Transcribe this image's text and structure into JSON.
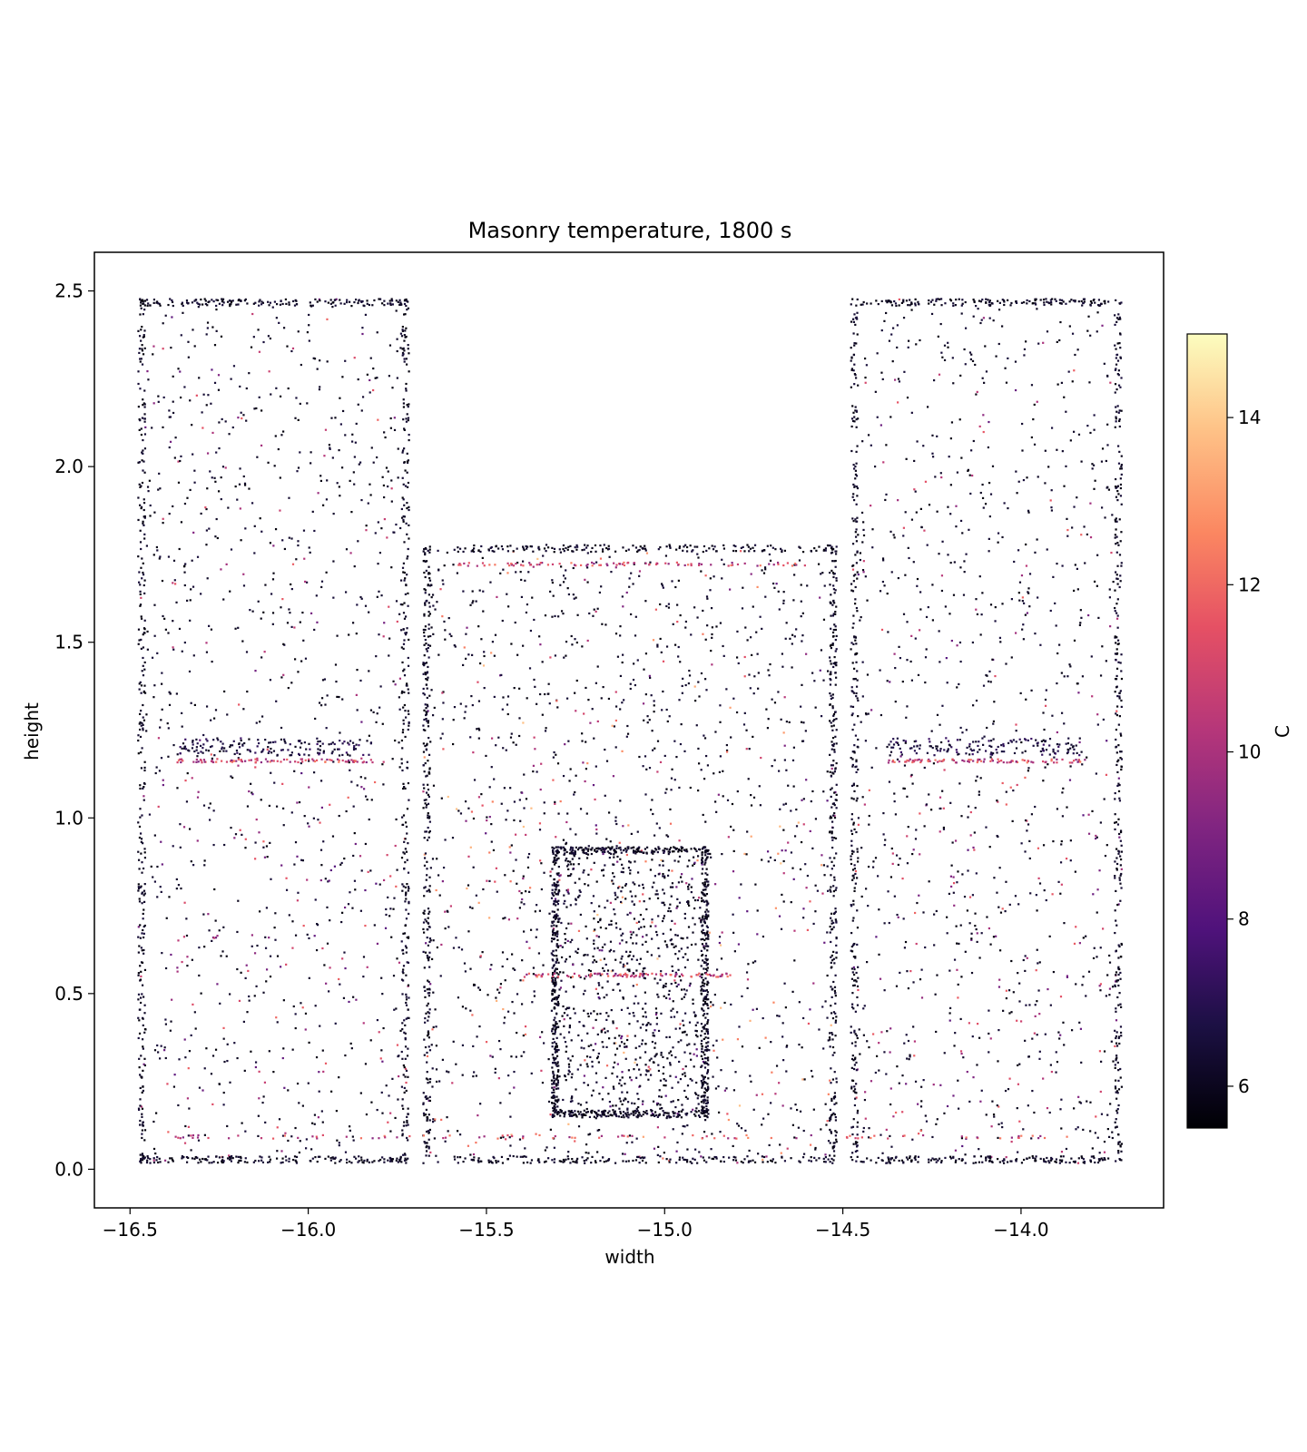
{
  "chart_data": {
    "type": "scatter",
    "title": "Masonry temperature, 1800 s",
    "xlabel": "width",
    "ylabel": "height",
    "xlim": [
      -16.6,
      -13.6
    ],
    "ylim": [
      -0.11,
      2.61
    ],
    "xticks": [
      -16.5,
      -16.0,
      -15.5,
      -15.0,
      -14.5,
      -14.0
    ],
    "xtick_labels": [
      "−16.5",
      "−16.0",
      "−15.5",
      "−15.0",
      "−14.5",
      "−14.0"
    ],
    "yticks": [
      0.0,
      0.5,
      1.0,
      1.5,
      2.0,
      2.5
    ],
    "ytick_labels": [
      "0.0",
      "0.5",
      "1.0",
      "1.5",
      "2.0",
      "2.5"
    ],
    "grid": false,
    "colorbar": {
      "label": "C",
      "cmap": "magma",
      "range": [
        5.5,
        15.0
      ],
      "ticks": [
        6,
        8,
        10,
        12,
        14
      ],
      "tick_labels": [
        "6",
        "8",
        "10",
        "12",
        "14"
      ]
    },
    "colors": {
      "cold": "#000004",
      "mid_cold": "#3b0f70",
      "mid": "#8c2981",
      "mid_warm": "#de4968",
      "warm": "#fe9f6d",
      "hot": "#fcfdbf"
    },
    "regions": [
      {
        "name": "left-pier",
        "x": [
          -16.48,
          -15.72
        ],
        "y": [
          0.02,
          2.48
        ],
        "temp": [
          6.0,
          11.0
        ]
      },
      {
        "name": "center-block",
        "x": [
          -15.68,
          -14.52
        ],
        "y": [
          0.02,
          1.78
        ],
        "temp": [
          6.0,
          13.0
        ]
      },
      {
        "name": "right-pier",
        "x": [
          -14.48,
          -13.72
        ],
        "y": [
          0.02,
          2.48
        ],
        "temp": [
          6.0,
          11.0
        ]
      },
      {
        "name": "core",
        "x": [
          -15.32,
          -14.88
        ],
        "y": [
          0.15,
          0.92
        ],
        "temp": [
          5.8,
          8.0
        ]
      }
    ]
  }
}
